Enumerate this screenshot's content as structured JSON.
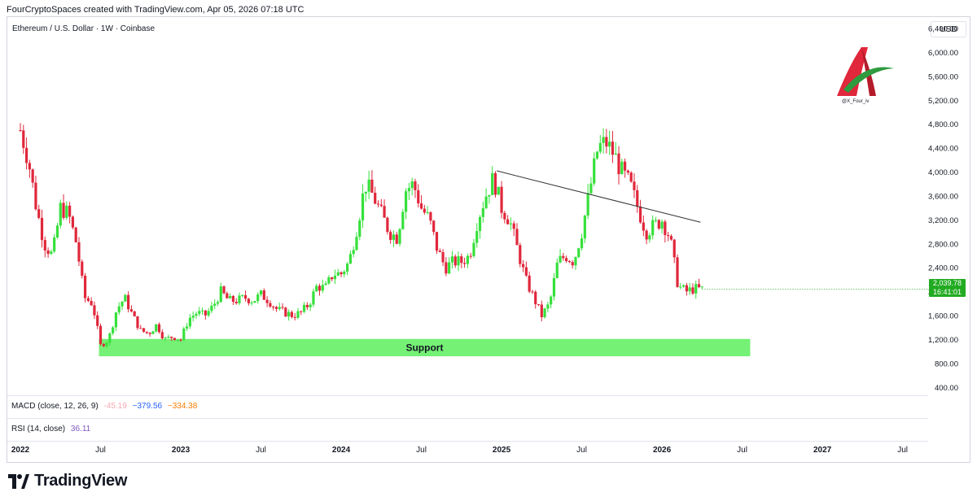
{
  "header": {
    "caption": "FourCryptoSpaces created with TradingView.com, Apr 05, 2026 07:18 UTC"
  },
  "symbol": {
    "title": "Ethereum / U.S. Dollar · 1W · Coinbase"
  },
  "currency": "USD",
  "watermark": {
    "handle": "@X_Four_iv"
  },
  "last_price": {
    "value": "2,039.78",
    "countdown": "16:41:01"
  },
  "indicators": {
    "macd": {
      "label": "MACD (close, 12, 26, 9)",
      "v1": "-45.19",
      "v2": "−379.56",
      "v3": "−334.38"
    },
    "rsi": {
      "label": "RSI (14, close)",
      "value": "36.11"
    }
  },
  "logo": {
    "text": "TradingView"
  },
  "colors": {
    "up": "#36e03b",
    "down": "#e0273b",
    "support": "#6ef06e",
    "last_price": "#22ab22",
    "trend": "#333333"
  },
  "chart_data": {
    "type": "candlestick",
    "title": "Ethereum / U.S. Dollar · 1W · Coinbase",
    "yaxis": {
      "ticks": [
        "400.00",
        "800.00",
        "1,200.00",
        "1,600.00",
        "2,000.00",
        "2,400.00",
        "2,800.00",
        "3,200.00",
        "3,600.00",
        "4,000.00",
        "4,400.00",
        "4,800.00",
        "5,200.00",
        "5,600.00",
        "6,000.00",
        "6,400.00"
      ],
      "tick_values": [
        400,
        800,
        1200,
        1600,
        2000,
        2400,
        2800,
        3200,
        3600,
        4000,
        4400,
        4800,
        5200,
        5600,
        6000,
        6400
      ],
      "ylim": [
        200,
        6400
      ]
    },
    "xaxis": {
      "ticks": [
        {
          "label": "2022",
          "t": 2022.0,
          "bold": true
        },
        {
          "label": "Jul",
          "t": 2022.5,
          "bold": false
        },
        {
          "label": "2023",
          "t": 2023.0,
          "bold": true
        },
        {
          "label": "Jul",
          "t": 2023.5,
          "bold": false
        },
        {
          "label": "2024",
          "t": 2024.0,
          "bold": true
        },
        {
          "label": "Jul",
          "t": 2024.5,
          "bold": false
        },
        {
          "label": "2025",
          "t": 2025.0,
          "bold": true
        },
        {
          "label": "Jul",
          "t": 2025.5,
          "bold": false
        },
        {
          "label": "2026",
          "t": 2026.0,
          "bold": true
        },
        {
          "label": "Jul",
          "t": 2026.5,
          "bold": false
        },
        {
          "label": "2027",
          "t": 2027.0,
          "bold": true
        },
        {
          "label": "Jul",
          "t": 2027.5,
          "bold": false
        }
      ],
      "xlim": [
        2022.0,
        2027.7
      ]
    },
    "price_path": [
      [
        2022.0,
        4700
      ],
      [
        2022.05,
        4200
      ],
      [
        2022.1,
        3400
      ],
      [
        2022.15,
        2800
      ],
      [
        2022.2,
        2600
      ],
      [
        2022.25,
        3400
      ],
      [
        2022.3,
        3300
      ],
      [
        2022.35,
        2800
      ],
      [
        2022.4,
        1900
      ],
      [
        2022.45,
        1800
      ],
      [
        2022.5,
        1100
      ],
      [
        2022.55,
        1200
      ],
      [
        2022.6,
        1700
      ],
      [
        2022.65,
        1900
      ],
      [
        2022.7,
        1600
      ],
      [
        2022.75,
        1350
      ],
      [
        2022.8,
        1300
      ],
      [
        2022.85,
        1450
      ],
      [
        2022.9,
        1200
      ],
      [
        2022.95,
        1250
      ],
      [
        2023.0,
        1200
      ],
      [
        2023.05,
        1550
      ],
      [
        2023.1,
        1650
      ],
      [
        2023.15,
        1600
      ],
      [
        2023.2,
        1750
      ],
      [
        2023.25,
        2000
      ],
      [
        2023.3,
        1850
      ],
      [
        2023.35,
        1850
      ],
      [
        2023.4,
        1900
      ],
      [
        2023.45,
        1850
      ],
      [
        2023.5,
        1950
      ],
      [
        2023.55,
        1850
      ],
      [
        2023.6,
        1700
      ],
      [
        2023.65,
        1650
      ],
      [
        2023.7,
        1600
      ],
      [
        2023.75,
        1650
      ],
      [
        2023.8,
        1800
      ],
      [
        2023.85,
        2100
      ],
      [
        2023.9,
        2050
      ],
      [
        2023.95,
        2300
      ],
      [
        2024.0,
        2300
      ],
      [
        2024.05,
        2500
      ],
      [
        2024.1,
        3100
      ],
      [
        2024.15,
        3800
      ],
      [
        2024.2,
        3600
      ],
      [
        2024.25,
        3300
      ],
      [
        2024.3,
        3000
      ],
      [
        2024.35,
        2900
      ],
      [
        2024.4,
        3700
      ],
      [
        2024.45,
        3800
      ],
      [
        2024.5,
        3400
      ],
      [
        2024.55,
        3200
      ],
      [
        2024.6,
        2700
      ],
      [
        2024.65,
        2400
      ],
      [
        2024.7,
        2500
      ],
      [
        2024.75,
        2500
      ],
      [
        2024.8,
        2600
      ],
      [
        2024.85,
        3200
      ],
      [
        2024.9,
        3600
      ],
      [
        2024.95,
        3900
      ],
      [
        2025.0,
        3400
      ],
      [
        2025.05,
        3200
      ],
      [
        2025.1,
        2700
      ],
      [
        2025.15,
        2200
      ],
      [
        2025.2,
        1900
      ],
      [
        2025.25,
        1600
      ],
      [
        2025.3,
        1800
      ],
      [
        2025.35,
        2500
      ],
      [
        2025.4,
        2600
      ],
      [
        2025.45,
        2500
      ],
      [
        2025.5,
        3000
      ],
      [
        2025.55,
        3700
      ],
      [
        2025.6,
        4400
      ],
      [
        2025.65,
        4500
      ],
      [
        2025.7,
        4300
      ],
      [
        2025.75,
        4000
      ],
      [
        2025.8,
        3800
      ],
      [
        2025.85,
        3400
      ],
      [
        2025.9,
        3000
      ],
      [
        2025.95,
        3100
      ],
      [
        2026.0,
        3200
      ],
      [
        2026.05,
        2900
      ],
      [
        2026.1,
        2100
      ],
      [
        2026.15,
        2000
      ],
      [
        2026.2,
        2050
      ],
      [
        2026.25,
        2040
      ]
    ],
    "support_zone": {
      "label": "Support",
      "y": [
        920,
        1210
      ],
      "x": [
        2022.49,
        2026.55
      ]
    },
    "trendline": {
      "points": [
        [
          2024.97,
          4020
        ],
        [
          2026.24,
          3160
        ]
      ]
    }
  }
}
